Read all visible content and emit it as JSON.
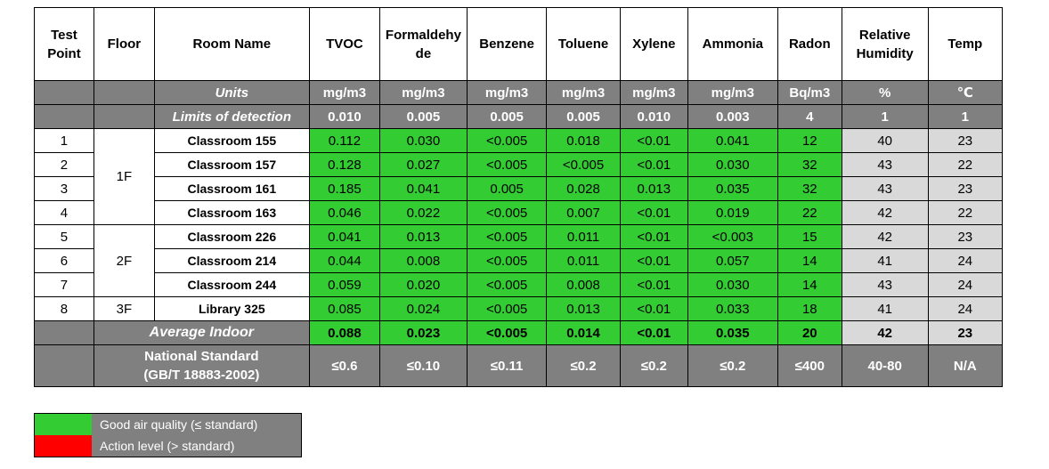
{
  "headers": [
    "Test\nPoint",
    "Floor",
    "Room Name",
    "TVOC",
    "Formaldehyde",
    "Benzene",
    "Toluene",
    "Xylene",
    "Ammonia",
    "Radon",
    "Relative\nHumidity",
    "Temp"
  ],
  "header_labels": {
    "test_point": "Test Point",
    "floor": "Floor",
    "room_name": "Room Name",
    "tvoc": "TVOC",
    "formaldehyde": "Formaldehyde",
    "benzene": "Benzene",
    "toluene": "Toluene",
    "xylene": "Xylene",
    "ammonia": "Ammonia",
    "radon": "Radon",
    "relative_humidity": "Relative Humidity",
    "temp": "Temp"
  },
  "units_row": {
    "label": "Units",
    "values": [
      "mg/m3",
      "mg/m3",
      "mg/m3",
      "mg/m3",
      "mg/m3",
      "mg/m3",
      "Bq/m3",
      "%",
      "℃"
    ]
  },
  "lod_row": {
    "label": "Limits of detection",
    "values": [
      "0.010",
      "0.005",
      "0.005",
      "0.005",
      "0.010",
      "0.003",
      "4",
      "1",
      "1"
    ]
  },
  "floors": [
    "1F",
    "2F",
    "3F"
  ],
  "rows": [
    {
      "point": "1",
      "room": "Classroom 155",
      "values": [
        "0.112",
        "0.030",
        "<0.005",
        "0.018",
        "<0.01",
        "0.041",
        "12",
        "40",
        "23"
      ]
    },
    {
      "point": "2",
      "room": "Classroom 157",
      "values": [
        "0.128",
        "0.027",
        "<0.005",
        "<0.005",
        "<0.01",
        "0.030",
        "32",
        "43",
        "22"
      ]
    },
    {
      "point": "3",
      "room": "Classroom 161",
      "values": [
        "0.185",
        "0.041",
        "0.005",
        "0.028",
        "0.013",
        "0.035",
        "32",
        "43",
        "23"
      ]
    },
    {
      "point": "4",
      "room": "Classroom 163",
      "values": [
        "0.046",
        "0.022",
        "<0.005",
        "0.007",
        "<0.01",
        "0.019",
        "22",
        "42",
        "22"
      ]
    },
    {
      "point": "5",
      "room": "Classroom 226",
      "values": [
        "0.041",
        "0.013",
        "<0.005",
        "0.011",
        "<0.01",
        "<0.003",
        "15",
        "42",
        "23"
      ]
    },
    {
      "point": "6",
      "room": "Classroom 214",
      "values": [
        "0.044",
        "0.008",
        "<0.005",
        "0.011",
        "<0.01",
        "0.057",
        "14",
        "41",
        "24"
      ]
    },
    {
      "point": "7",
      "room": "Classroom 244",
      "values": [
        "0.059",
        "0.020",
        "<0.005",
        "0.008",
        "<0.01",
        "0.030",
        "14",
        "43",
        "24"
      ]
    },
    {
      "point": "8",
      "room": "Library 325",
      "values": [
        "0.085",
        "0.024",
        "<0.005",
        "0.013",
        "<0.01",
        "0.033",
        "18",
        "41",
        "24"
      ]
    }
  ],
  "average_row": {
    "label": "Average Indoor",
    "values": [
      "0.088",
      "0.023",
      "<0.005",
      "0.014",
      "<0.01",
      "0.035",
      "20",
      "42",
      "23"
    ]
  },
  "standard_row": {
    "label_line1": "National Standard",
    "label_line2": "(GB/T 18883-2002)",
    "values": [
      "≤0.6",
      "≤0.10",
      "≤0.11",
      "≤0.2",
      "≤0.2",
      "≤0.2",
      "≤400",
      "40-80",
      "N/A"
    ]
  },
  "legend": {
    "items": [
      {
        "label": "Good air quality (≤ standard)",
        "color": "#33cc33"
      },
      {
        "label": "Action level (> standard)",
        "color": "#ff0000"
      }
    ]
  },
  "colors": {
    "good": "#33cc33",
    "action": "#ff0000",
    "header_gray": "#808080",
    "neutral": "#d9d9d9"
  }
}
